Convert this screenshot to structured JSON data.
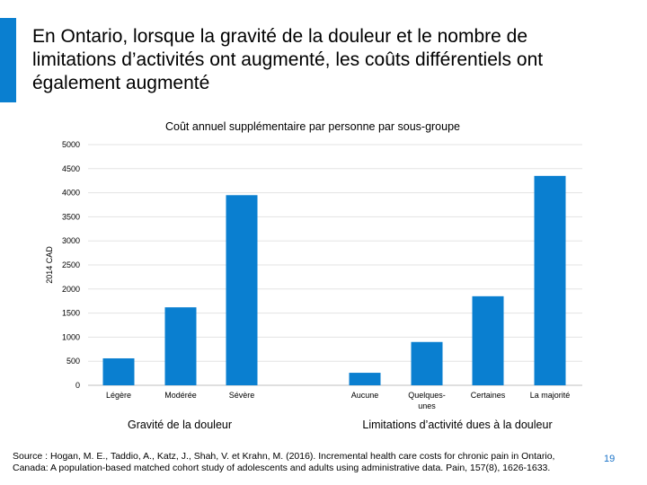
{
  "slide": {
    "title_lines": [
      "En Ontario, lorsque la gravité de la douleur et le nombre de",
      "limitations d’activités ont augmenté, les coûts différentiels ont",
      "également augmenté"
    ],
    "source_lines": [
      "Source : Hogan, M. E., Taddio, A., Katz, J., Shah, V. et Krahn, M. (2016). Incremental health care costs for chronic pain in Ontario,",
      "Canada: A population-based matched cohort study of adolescents and adults using administrative data. Pain, 157(8), 1626-1633."
    ],
    "page_number": "19",
    "accent_color": "#0a7fd0",
    "bar_color": "#0a7fd0"
  },
  "chart_data": {
    "type": "bar",
    "title": "Coût annuel supplémentaire par personne par sous-groupe",
    "ylabel": "2014 CAD",
    "ylim": [
      0,
      5000
    ],
    "yticks": [
      0,
      500,
      1000,
      1500,
      2000,
      2500,
      3000,
      3500,
      4000,
      4500,
      5000
    ],
    "grid": true,
    "groups": [
      {
        "name": "Gravité de la douleur",
        "categories": [
          "Légère",
          "Modérée",
          "Sévère"
        ],
        "values": [
          560,
          1620,
          3950
        ]
      },
      {
        "name": "Limitations d’activité dues à la douleur",
        "categories": [
          "Aucune",
          "Quelques-\nunes",
          "Certaines",
          "La majorité"
        ],
        "values": [
          260,
          900,
          1850,
          4350
        ]
      }
    ]
  }
}
